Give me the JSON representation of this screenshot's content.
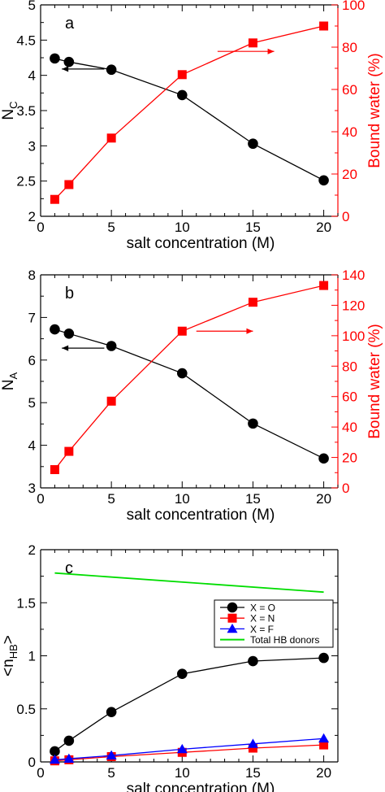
{
  "chart_data": [
    {
      "type": "line",
      "panel": "a",
      "xlabel": "salt concentration (M)",
      "ylabel": "N",
      "ylabel_sub": "C",
      "y2label": "Bound water (%)",
      "xlim": [
        0,
        21
      ],
      "ylim": [
        2,
        5
      ],
      "y2lim": [
        0,
        100
      ],
      "x_ticks": [
        "0",
        "5",
        "10",
        "15",
        "20"
      ],
      "y_ticks": [
        "2",
        "2.5",
        "3",
        "3.5",
        "4",
        "4.5",
        "5"
      ],
      "y2_ticks": [
        "0",
        "20",
        "40",
        "60",
        "80",
        "100"
      ],
      "x": [
        1,
        2,
        5,
        10,
        15,
        20
      ],
      "series": [
        {
          "axis": "left",
          "color": "#000000",
          "marker": "circle",
          "values": [
            4.24,
            4.19,
            4.08,
            3.72,
            3.03,
            2.51
          ]
        },
        {
          "axis": "right",
          "color": "#ff0000",
          "marker": "square",
          "values": [
            8,
            15,
            37,
            67,
            82,
            90
          ]
        }
      ],
      "arrows": [
        {
          "color": "#000000",
          "direction": "left",
          "x_from": 4.5,
          "x_to": 1.5,
          "axis": "left",
          "y": 4.09
        },
        {
          "color": "#ff0000",
          "direction": "right",
          "x_from": 12.5,
          "x_to": 16.5,
          "axis": "right",
          "y": 78
        }
      ]
    },
    {
      "type": "line",
      "panel": "b",
      "xlabel": "salt concentration (M)",
      "ylabel": "N",
      "ylabel_sub": "A",
      "y2label": "Bound water (%)",
      "xlim": [
        0,
        21
      ],
      "ylim": [
        3,
        8
      ],
      "y2lim": [
        0,
        140
      ],
      "x_ticks": [
        "0",
        "5",
        "10",
        "15",
        "20"
      ],
      "y_ticks": [
        "3",
        "4",
        "5",
        "6",
        "7",
        "8"
      ],
      "y2_ticks": [
        "0",
        "20",
        "40",
        "60",
        "80",
        "100",
        "120",
        "140"
      ],
      "x": [
        1,
        2,
        5,
        10,
        15,
        20
      ],
      "series": [
        {
          "axis": "left",
          "color": "#000000",
          "marker": "circle",
          "values": [
            6.72,
            6.62,
            6.33,
            5.69,
            4.51,
            3.69
          ]
        },
        {
          "axis": "right",
          "color": "#ff0000",
          "marker": "square",
          "values": [
            12,
            24,
            57,
            103,
            122,
            133
          ]
        }
      ],
      "arrows": [
        {
          "color": "#000000",
          "direction": "left",
          "x_from": 4.5,
          "x_to": 1.5,
          "axis": "left",
          "y": 6.28
        },
        {
          "color": "#ff0000",
          "direction": "right",
          "x_from": 11,
          "x_to": 15,
          "axis": "right",
          "y": 103
        }
      ]
    },
    {
      "type": "line",
      "panel": "c",
      "xlabel": "salt concentration (M)",
      "ylabel": "<n",
      "ylabel_sub": "HB",
      "ylabel_end": ">",
      "xlim": [
        0,
        21
      ],
      "ylim": [
        0,
        2
      ],
      "x_ticks": [
        "0",
        "5",
        "10",
        "15",
        "20"
      ],
      "y_ticks": [
        "0",
        "0.5",
        "1",
        "1.5",
        "2"
      ],
      "x": [
        1,
        2,
        5,
        10,
        15,
        20
      ],
      "legend_position": "upper-right",
      "series": [
        {
          "name": "X = O",
          "color": "#000000",
          "marker": "circle",
          "values": [
            0.1,
            0.2,
            0.47,
            0.83,
            0.95,
            0.98
          ]
        },
        {
          "name": "X = N",
          "color": "#ff0000",
          "marker": "square",
          "values": [
            0.01,
            0.02,
            0.05,
            0.09,
            0.13,
            0.16
          ]
        },
        {
          "name": "X = F",
          "color": "#0000ff",
          "marker": "triangle",
          "values": [
            0.02,
            0.03,
            0.06,
            0.12,
            0.17,
            0.22
          ]
        },
        {
          "name": "Total HB donors",
          "color": "#00dd00",
          "marker": "none",
          "x": [
            1,
            20
          ],
          "values": [
            1.78,
            1.6
          ]
        }
      ]
    }
  ]
}
